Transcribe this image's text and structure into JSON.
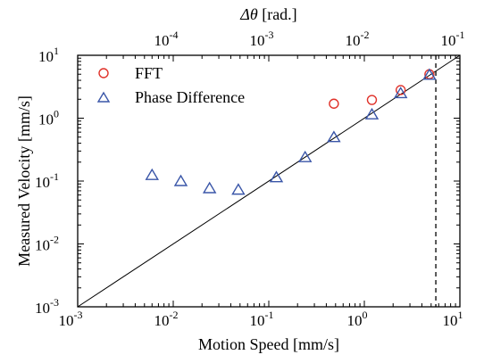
{
  "chart_data": {
    "type": "scatter",
    "xlabel": "Motion Speed [mm/s]",
    "ylabel": "Measured Velocity [mm/s]",
    "top_xlabel_symbol": "Δθ",
    "top_xlabel_unit": " [rad.]",
    "x_scale": "log",
    "y_scale": "log",
    "xlim": [
      0.001,
      10
    ],
    "ylim": [
      0.001,
      10
    ],
    "top_xlim": [
      1e-05,
      0.1
    ],
    "x_ticks": [
      {
        "value": 0.001,
        "base": "10",
        "exp": "-3"
      },
      {
        "value": 0.01,
        "base": "10",
        "exp": "-2"
      },
      {
        "value": 0.1,
        "base": "10",
        "exp": "-1"
      },
      {
        "value": 1,
        "base": "10",
        "exp": "0"
      },
      {
        "value": 10,
        "base": "10",
        "exp": "1"
      }
    ],
    "y_ticks": [
      {
        "value": 0.001,
        "base": "10",
        "exp": "-3"
      },
      {
        "value": 0.01,
        "base": "10",
        "exp": "-2"
      },
      {
        "value": 0.1,
        "base": "10",
        "exp": "-1"
      },
      {
        "value": 1,
        "base": "10",
        "exp": "0"
      },
      {
        "value": 10,
        "base": "10",
        "exp": "1"
      }
    ],
    "top_ticks": [
      {
        "value": 0.0001,
        "base": "10",
        "exp": "-4"
      },
      {
        "value": 0.001,
        "base": "10",
        "exp": "-3"
      },
      {
        "value": 0.01,
        "base": "10",
        "exp": "-2"
      },
      {
        "value": 0.1,
        "base": "10",
        "exp": "-1"
      }
    ],
    "reference_line": {
      "from": [
        0.001,
        0.001
      ],
      "to": [
        10,
        10
      ],
      "style": "solid"
    },
    "vertical_line": {
      "x": 5.6,
      "style": "dashed"
    },
    "legend_position": "top-left",
    "series": [
      {
        "name": "FFT",
        "marker": "circle",
        "color": "#e0322a",
        "points": [
          [
            0.48,
            1.7
          ],
          [
            1.2,
            1.95
          ],
          [
            2.4,
            2.8
          ],
          [
            4.8,
            5.0
          ]
        ]
      },
      {
        "name": "Phase Difference",
        "marker": "triangle",
        "color": "#3a56a8",
        "points": [
          [
            0.006,
            0.125
          ],
          [
            0.012,
            0.1
          ],
          [
            0.024,
            0.077
          ],
          [
            0.048,
            0.073
          ],
          [
            0.12,
            0.115
          ],
          [
            0.24,
            0.24
          ],
          [
            0.48,
            0.5
          ],
          [
            1.2,
            1.15
          ],
          [
            2.4,
            2.5
          ],
          [
            4.8,
            4.9
          ]
        ]
      }
    ]
  }
}
